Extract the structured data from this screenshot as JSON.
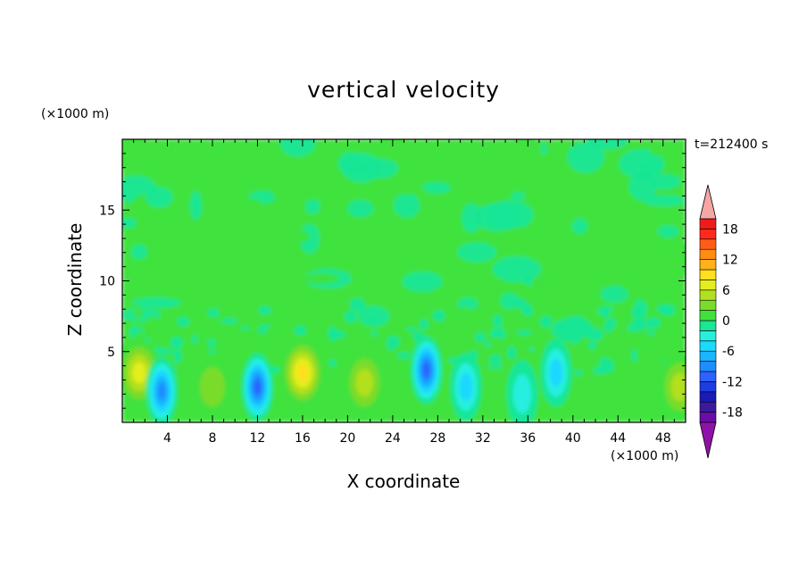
{
  "chart_data": {
    "type": "heatmap",
    "title": "vertical velocity",
    "xlabel": "X coordinate",
    "ylabel": "Z coordinate",
    "x_unit": "(×1000 m)",
    "y_unit": "(×1000 m)",
    "time_label": "t=212400 s",
    "xlim": [
      0,
      50
    ],
    "ylim": [
      0,
      20
    ],
    "x_ticks": [
      4,
      8,
      12,
      16,
      20,
      24,
      28,
      32,
      36,
      40,
      44,
      48
    ],
    "y_ticks": [
      5,
      10,
      15
    ],
    "grid": false,
    "colorbar": {
      "min": -20,
      "max": 20,
      "step": 2,
      "tick_labels": [
        18,
        12,
        6,
        0,
        -6,
        -12,
        -18
      ],
      "colors": [
        "#6a0da8",
        "#3c1aa0",
        "#1a1ab8",
        "#1c3de0",
        "#2c62ff",
        "#1f8cff",
        "#19b5ff",
        "#1dd8ff",
        "#26efdf",
        "#19e696",
        "#3fe23c",
        "#7adc2a",
        "#b2e01f",
        "#e3ee1d",
        "#ffe01b",
        "#ffb219",
        "#ff8c13",
        "#ff5d16",
        "#ff2a1a",
        "#f01a1a"
      ],
      "over_color": "#f7a6a6",
      "under_color": "#8f12a8"
    },
    "features": [
      {
        "kind": "updraft",
        "x": 1.5,
        "z": 3.5,
        "w": 7
      },
      {
        "kind": "downdraft",
        "x": 3.5,
        "z": 2.2,
        "w": -9
      },
      {
        "kind": "updraft",
        "x": 8.0,
        "z": 2.5,
        "w": 4
      },
      {
        "kind": "downdraft",
        "x": 12.0,
        "z": 2.5,
        "w": -12
      },
      {
        "kind": "updraft",
        "x": 16.0,
        "z": 3.5,
        "w": 9
      },
      {
        "kind": "updraft",
        "x": 21.5,
        "z": 2.8,
        "w": 6
      },
      {
        "kind": "downdraft",
        "x": 27.0,
        "z": 3.7,
        "w": -12
      },
      {
        "kind": "downdraft",
        "x": 30.5,
        "z": 2.5,
        "w": -5
      },
      {
        "kind": "downdraft",
        "x": 35.5,
        "z": 2.0,
        "w": -4
      },
      {
        "kind": "downdraft",
        "x": 38.5,
        "z": 3.5,
        "w": -6
      },
      {
        "kind": "updraft",
        "x": 49.5,
        "z": 2.5,
        "w": 6
      }
    ]
  }
}
